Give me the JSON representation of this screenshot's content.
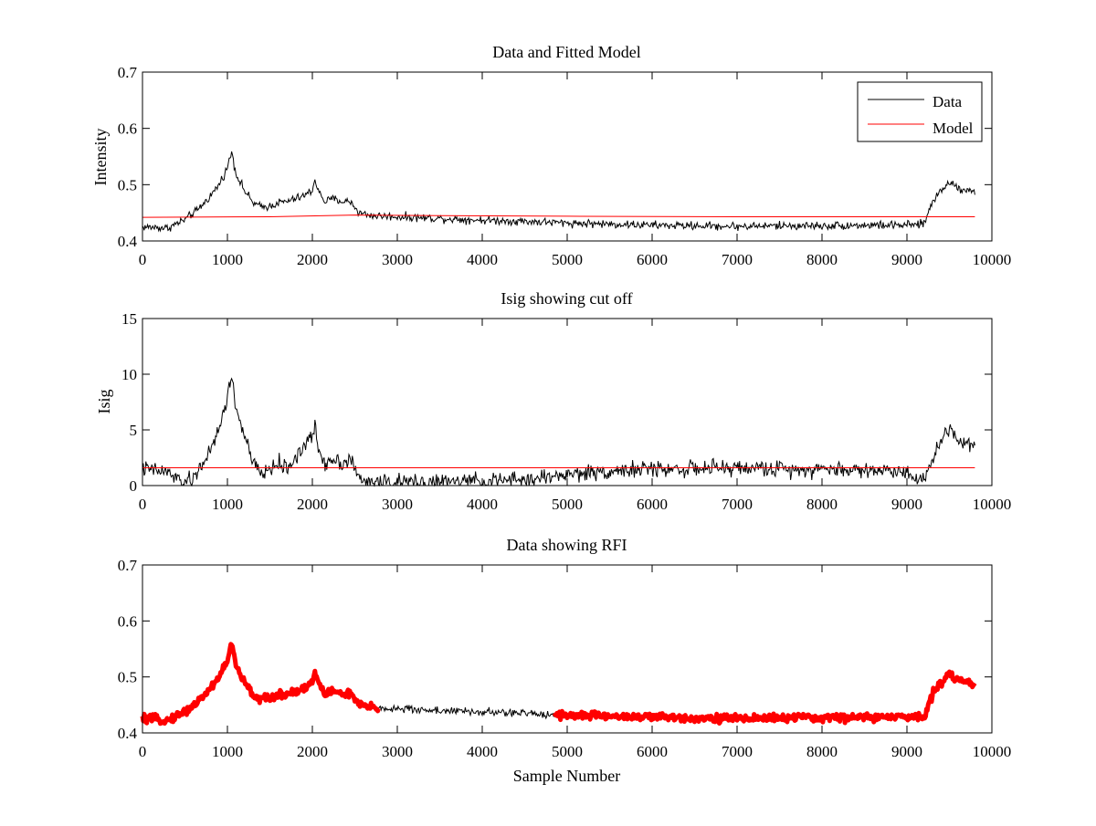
{
  "chart_data": [
    {
      "type": "line",
      "title": "Data and Fitted Model",
      "xlabel": "",
      "ylabel": "Intensity",
      "xlim": [
        0,
        10000
      ],
      "ylim": [
        0.4,
        0.7
      ],
      "x_ticks": [
        0,
        1000,
        2000,
        3000,
        4000,
        5000,
        6000,
        7000,
        8000,
        9000,
        10000
      ],
      "y_ticks": [
        0.4,
        0.5,
        0.6,
        0.7
      ],
      "x_tick_labels": [
        "0",
        "1000",
        "2000",
        "3000",
        "4000",
        "5000",
        "6000",
        "7000",
        "8000",
        "9000",
        "10000"
      ],
      "y_tick_labels": [
        "0.4",
        "0.5",
        "0.6",
        "0.7"
      ],
      "legend": [
        {
          "name": "Data",
          "color": "#000000"
        },
        {
          "name": "Model",
          "color": "#ff0000"
        }
      ],
      "legend_position": "top-right",
      "series": [
        {
          "name": "Data",
          "color": "#000000",
          "noise": 0.004,
          "x": [
            0,
            300,
            500,
            650,
            800,
            900,
            1000,
            1050,
            1100,
            1200,
            1300,
            1400,
            1500,
            1600,
            1700,
            1800,
            1900,
            2000,
            2030,
            2080,
            2150,
            2250,
            2350,
            2450,
            2550,
            2700,
            3000,
            3500,
            4000,
            4500,
            5000,
            5500,
            6000,
            6500,
            7000,
            7500,
            8000,
            8500,
            9000,
            9200,
            9300,
            9400,
            9500,
            9600,
            9700,
            9800
          ],
          "y": [
            0.425,
            0.423,
            0.438,
            0.455,
            0.48,
            0.5,
            0.53,
            0.56,
            0.52,
            0.49,
            0.468,
            0.46,
            0.462,
            0.468,
            0.47,
            0.475,
            0.48,
            0.49,
            0.51,
            0.485,
            0.47,
            0.475,
            0.47,
            0.47,
            0.45,
            0.445,
            0.443,
            0.44,
            0.437,
            0.435,
            0.432,
            0.43,
            0.428,
            0.427,
            0.426,
            0.427,
            0.427,
            0.428,
            0.428,
            0.43,
            0.47,
            0.49,
            0.505,
            0.495,
            0.49,
            0.488
          ]
        },
        {
          "name": "Model",
          "color": "#ff0000",
          "noise": 0,
          "x": [
            0,
            1500,
            2500,
            3500,
            5000,
            7000,
            9000,
            9800
          ],
          "y": [
            0.442,
            0.443,
            0.446,
            0.445,
            0.444,
            0.443,
            0.443,
            0.443
          ]
        }
      ]
    },
    {
      "type": "line",
      "title": "Isig showing cut off",
      "xlabel": "",
      "ylabel": "Isig",
      "xlim": [
        0,
        10000
      ],
      "ylim": [
        0,
        15
      ],
      "x_ticks": [
        0,
        1000,
        2000,
        3000,
        4000,
        5000,
        6000,
        7000,
        8000,
        9000,
        10000
      ],
      "y_ticks": [
        0,
        5,
        10,
        15
      ],
      "x_tick_labels": [
        "0",
        "1000",
        "2000",
        "3000",
        "4000",
        "5000",
        "6000",
        "7000",
        "8000",
        "9000",
        "10000"
      ],
      "y_tick_labels": [
        "0",
        "5",
        "10",
        "15"
      ],
      "series": [
        {
          "name": "Isig",
          "color": "#000000",
          "noise": 0.4,
          "x": [
            0,
            300,
            450,
            600,
            700,
            800,
            900,
            1000,
            1050,
            1100,
            1200,
            1300,
            1400,
            1500,
            1600,
            1700,
            1800,
            1900,
            2000,
            2030,
            2080,
            2150,
            2250,
            2350,
            2450,
            2550,
            2700,
            3000,
            3500,
            4000,
            4500,
            5000,
            5500,
            6000,
            6500,
            7000,
            7500,
            8000,
            8500,
            9000,
            9200,
            9300,
            9400,
            9500,
            9600,
            9700,
            9800
          ],
          "y": [
            1.5,
            1.2,
            0.3,
            0.5,
            2.0,
            3.0,
            5.0,
            8.0,
            9.8,
            7.0,
            4.5,
            2.0,
            1.0,
            1.5,
            2.0,
            1.5,
            2.5,
            3.5,
            4.5,
            5.2,
            3.0,
            2.0,
            2.5,
            2.0,
            2.5,
            0.5,
            0.3,
            0.3,
            0.3,
            0.4,
            0.5,
            1.0,
            1.3,
            1.5,
            1.5,
            1.6,
            1.5,
            1.5,
            1.4,
            1.3,
            0.3,
            2.5,
            4.0,
            5.2,
            4.3,
            3.8,
            3.5
          ]
        },
        {
          "name": "Cut off",
          "color": "#ff0000",
          "noise": 0,
          "x": [
            0,
            9800
          ],
          "y": [
            1.6,
            1.6
          ]
        }
      ]
    },
    {
      "type": "line",
      "title": "Data showing RFI",
      "xlabel": "Sample Number",
      "ylabel": "",
      "xlim": [
        0,
        10000
      ],
      "ylim": [
        0.4,
        0.7
      ],
      "x_ticks": [
        0,
        1000,
        2000,
        3000,
        4000,
        5000,
        6000,
        7000,
        8000,
        9000,
        10000
      ],
      "y_ticks": [
        0.4,
        0.5,
        0.6,
        0.7
      ],
      "x_tick_labels": [
        "0",
        "1000",
        "2000",
        "3000",
        "4000",
        "5000",
        "6000",
        "7000",
        "8000",
        "9000",
        "10000"
      ],
      "y_tick_labels": [
        "0.4",
        "0.5",
        "0.6",
        "0.7"
      ],
      "series": [
        {
          "name": "Data",
          "color": "#000000",
          "noise": 0.004,
          "x": [
            0,
            300,
            500,
            650,
            800,
            900,
            1000,
            1050,
            1100,
            1200,
            1300,
            1400,
            1500,
            1600,
            1700,
            1800,
            1900,
            2000,
            2030,
            2080,
            2150,
            2250,
            2350,
            2450,
            2550,
            2700,
            3000,
            3500,
            4000,
            4500,
            5000,
            5500,
            6000,
            6500,
            7000,
            7500,
            8000,
            8500,
            9000,
            9200,
            9300,
            9400,
            9500,
            9600,
            9700,
            9800
          ],
          "y": [
            0.425,
            0.423,
            0.438,
            0.455,
            0.48,
            0.5,
            0.53,
            0.56,
            0.52,
            0.49,
            0.468,
            0.46,
            0.462,
            0.468,
            0.47,
            0.475,
            0.48,
            0.49,
            0.51,
            0.485,
            0.47,
            0.475,
            0.47,
            0.47,
            0.45,
            0.445,
            0.443,
            0.44,
            0.437,
            0.435,
            0.432,
            0.43,
            0.428,
            0.427,
            0.426,
            0.427,
            0.427,
            0.428,
            0.428,
            0.43,
            0.47,
            0.49,
            0.505,
            0.495,
            0.49,
            0.488
          ]
        }
      ],
      "rfi_color": "#ff0000",
      "rfi_ranges": [
        [
          0,
          300
        ],
        [
          300,
          2780
        ],
        [
          4850,
          9800
        ]
      ]
    }
  ]
}
